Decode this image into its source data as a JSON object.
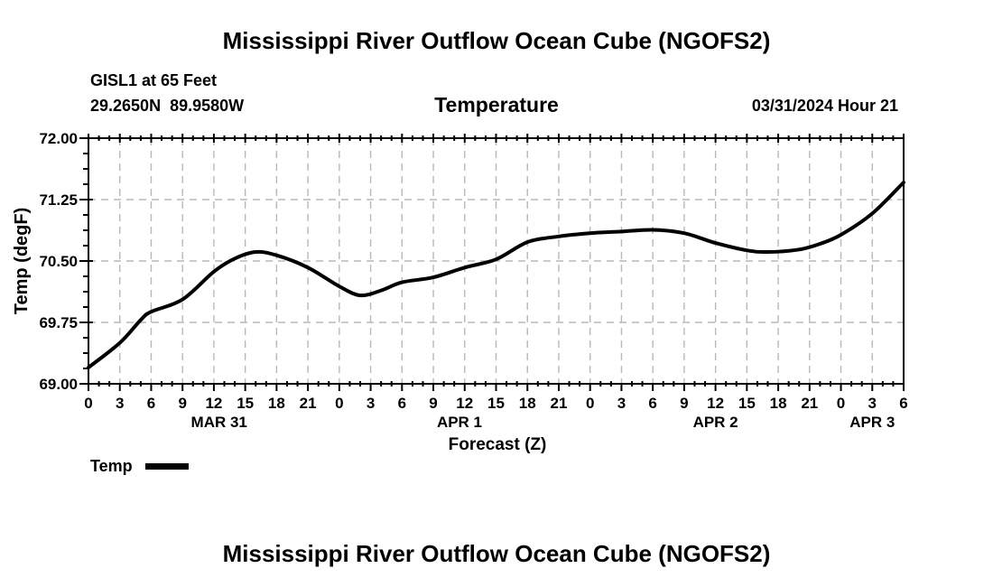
{
  "page": {
    "top_title": "Mississippi River Outflow Ocean Cube (NGOFS2)",
    "bottom_title": "Mississippi River Outflow Ocean Cube (NGOFS2)"
  },
  "header": {
    "station": "GISL1 at 65 Feet",
    "coords": "29.2650N  89.9580W",
    "plot_title": "Temperature",
    "run_time": "03/31/2024 Hour 21"
  },
  "legend": {
    "label": "Temp",
    "swatch_color": "#000000"
  },
  "chart_data": {
    "type": "line",
    "title": "Temperature",
    "xlabel": "Forecast (Z)",
    "ylabel": "Temp (degF)",
    "ylim": [
      69.0,
      72.0
    ],
    "y_ticks": [
      69.0,
      69.75,
      70.5,
      71.25,
      72.0
    ],
    "y_tick_labels": [
      "69.00",
      "69.75",
      "70.50",
      "71.25",
      "72.00"
    ],
    "y_minor_step": 0.1875,
    "x_range_hours": [
      0,
      78
    ],
    "x_major_step_hours": 3,
    "x_minor_step_hours": 1,
    "x_tick_labels": [
      "0",
      "3",
      "6",
      "9",
      "12",
      "15",
      "18",
      "21",
      "0",
      "3",
      "6",
      "9",
      "12",
      "15",
      "18",
      "21",
      "0",
      "3",
      "6",
      "9",
      "12",
      "15",
      "18",
      "21",
      "0",
      "3",
      "6"
    ],
    "day_labels": [
      {
        "label": "MAR 31",
        "hour": 12.5
      },
      {
        "label": "APR 1",
        "hour": 35.5
      },
      {
        "label": "APR 2",
        "hour": 60
      },
      {
        "label": "APR 3",
        "hour": 75
      }
    ],
    "grid": "dashed",
    "grid_color": "#b8b8b8",
    "axis_color": "#000000",
    "line_color": "#000000",
    "legend_position": "bottom-left",
    "series": [
      {
        "name": "Temp",
        "units": "degF",
        "x_units": "forecast hour (Z) from MAR 31 00Z",
        "points": [
          [
            0,
            69.2
          ],
          [
            3,
            69.5
          ],
          [
            5,
            69.78
          ],
          [
            6,
            69.88
          ],
          [
            9,
            70.03
          ],
          [
            12,
            70.37
          ],
          [
            14,
            70.53
          ],
          [
            16,
            70.61
          ],
          [
            18,
            70.57
          ],
          [
            21,
            70.42
          ],
          [
            24,
            70.19
          ],
          [
            26,
            70.08
          ],
          [
            28,
            70.14
          ],
          [
            30,
            70.24
          ],
          [
            33,
            70.3
          ],
          [
            36,
            70.42
          ],
          [
            39,
            70.52
          ],
          [
            42,
            70.73
          ],
          [
            45,
            70.8
          ],
          [
            48,
            70.84
          ],
          [
            51,
            70.86
          ],
          [
            54,
            70.88
          ],
          [
            57,
            70.84
          ],
          [
            60,
            70.72
          ],
          [
            63,
            70.63
          ],
          [
            65,
            70.61
          ],
          [
            68,
            70.64
          ],
          [
            70,
            70.71
          ],
          [
            72,
            70.82
          ],
          [
            75,
            71.08
          ],
          [
            78,
            71.46
          ]
        ]
      }
    ]
  }
}
